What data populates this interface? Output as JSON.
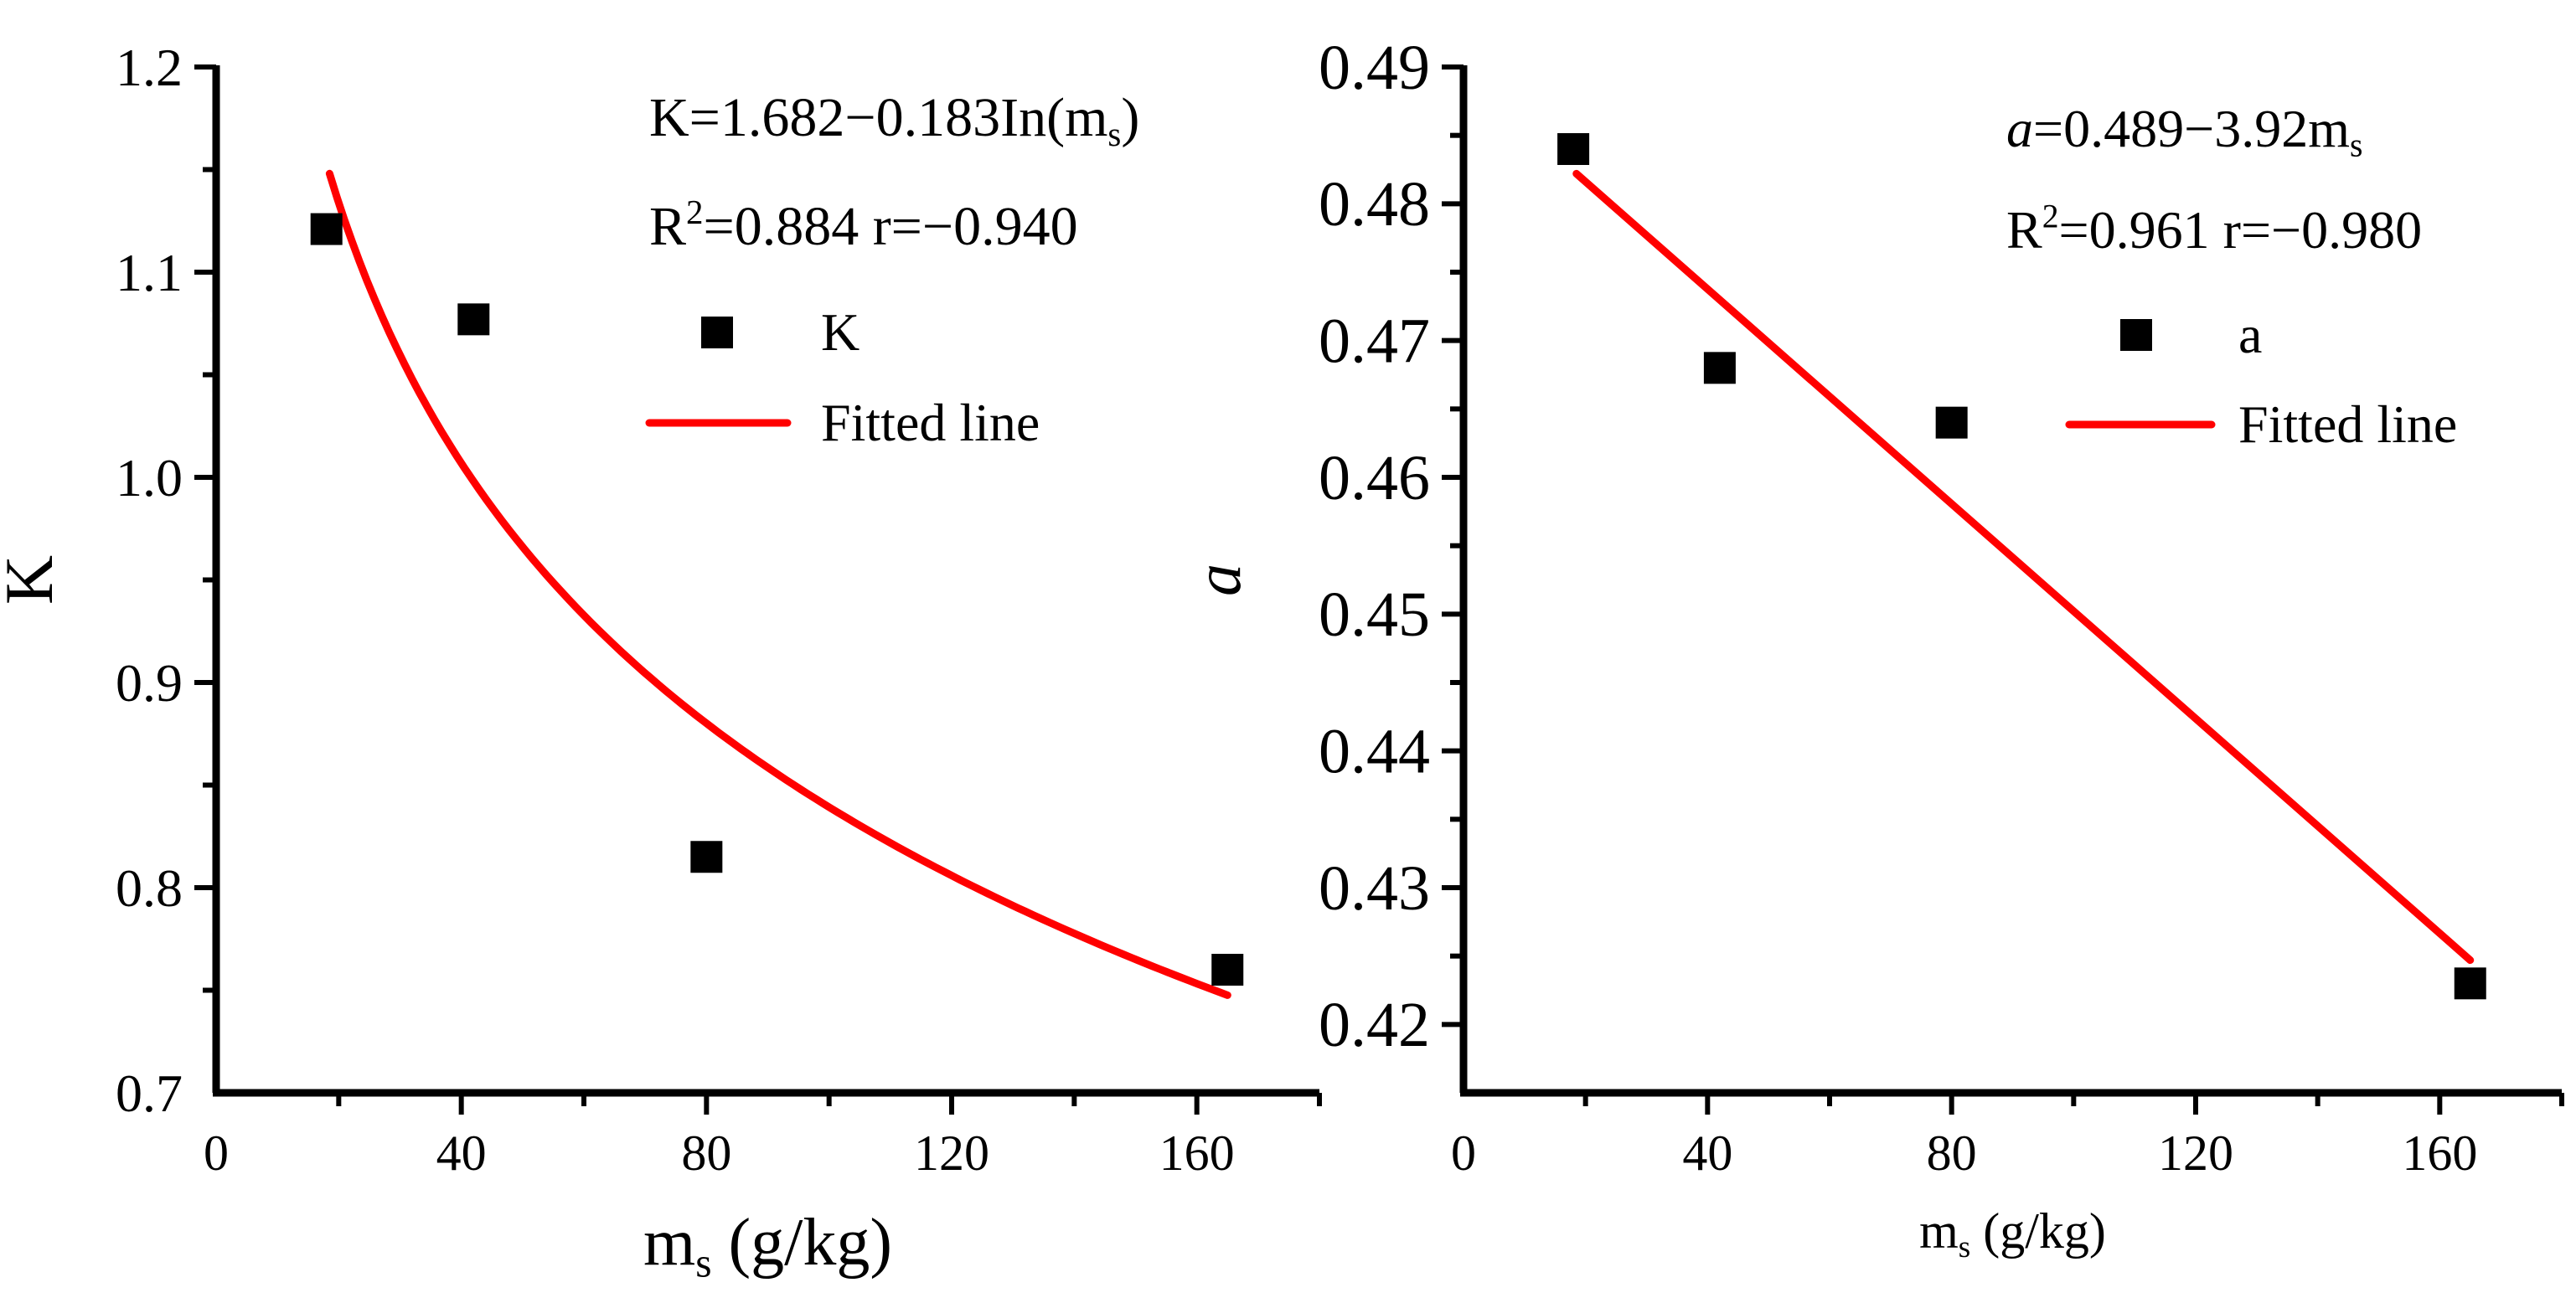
{
  "chart_data": [
    {
      "type": "scatter",
      "panel": "left",
      "xlabel": "m",
      "xlabel_sub": "s",
      "xlabel_unit": " (g/kg)",
      "ylabel": "K",
      "xlim": [
        0,
        180
      ],
      "ylim": [
        0.7,
        1.2
      ],
      "xticks": [
        0,
        40,
        80,
        120,
        160
      ],
      "yticks": [
        0.7,
        0.8,
        0.9,
        1.0,
        1.1,
        1.2
      ],
      "ytick_labels": [
        "0.7",
        "0.8",
        "0.9",
        "1.0",
        "1.1",
        "1.2"
      ],
      "series": [
        {
          "name": "K",
          "x": [
            18,
            42,
            80,
            165
          ],
          "y": [
            1.121,
            1.077,
            0.815,
            0.76
          ],
          "color": "#000000"
        }
      ],
      "fit": {
        "name": "Fitted line",
        "model": "log",
        "a": 1.682,
        "b": -0.183,
        "x_range": [
          18.5,
          165
        ],
        "color": "#ff0000"
      },
      "equation": {
        "prefix": "K=1.682−0.183In(m",
        "sub": "s",
        "suffix": ")"
      },
      "stats": {
        "r2_label": "R",
        "r2_sup": "2",
        "r2_text": "=0.884  r=−0.940"
      },
      "legend": [
        {
          "label": "K",
          "kind": "marker"
        },
        {
          "label": "Fitted line",
          "kind": "line"
        }
      ]
    },
    {
      "type": "scatter",
      "panel": "right",
      "xlabel": "m",
      "xlabel_sub": "s",
      "xlabel_unit": " (g/kg)",
      "ylabel": "a",
      "xlim": [
        0,
        180
      ],
      "ylim": [
        0.415,
        0.49
      ],
      "xticks": [
        0,
        40,
        80,
        120,
        160
      ],
      "yticks": [
        0.42,
        0.43,
        0.44,
        0.45,
        0.46,
        0.47,
        0.48,
        0.49
      ],
      "ytick_labels": [
        "0.42",
        "0.43",
        "0.44",
        "0.45",
        "0.46",
        "0.47",
        "0.48",
        "0.49"
      ],
      "series": [
        {
          "name": "a",
          "x": [
            18,
            42,
            80,
            165
          ],
          "y": [
            0.484,
            0.468,
            0.464,
            0.423
          ],
          "color": "#000000"
        }
      ],
      "fit": {
        "name": "Fitted line",
        "model": "linear",
        "x_range": [
          18.5,
          165
        ],
        "y_range": [
          0.4822,
          0.4247
        ],
        "color": "#ff0000"
      },
      "equation": {
        "italic": "a",
        "prefix": "=0.489−3.92m",
        "sub": "s",
        "suffix": ""
      },
      "stats": {
        "r2_label": "R",
        "r2_sup": "2",
        "r2_text": "=0.961  r=−0.980"
      },
      "legend": [
        {
          "label": "a",
          "kind": "marker"
        },
        {
          "label": "Fitted line",
          "kind": "line"
        }
      ]
    }
  ]
}
